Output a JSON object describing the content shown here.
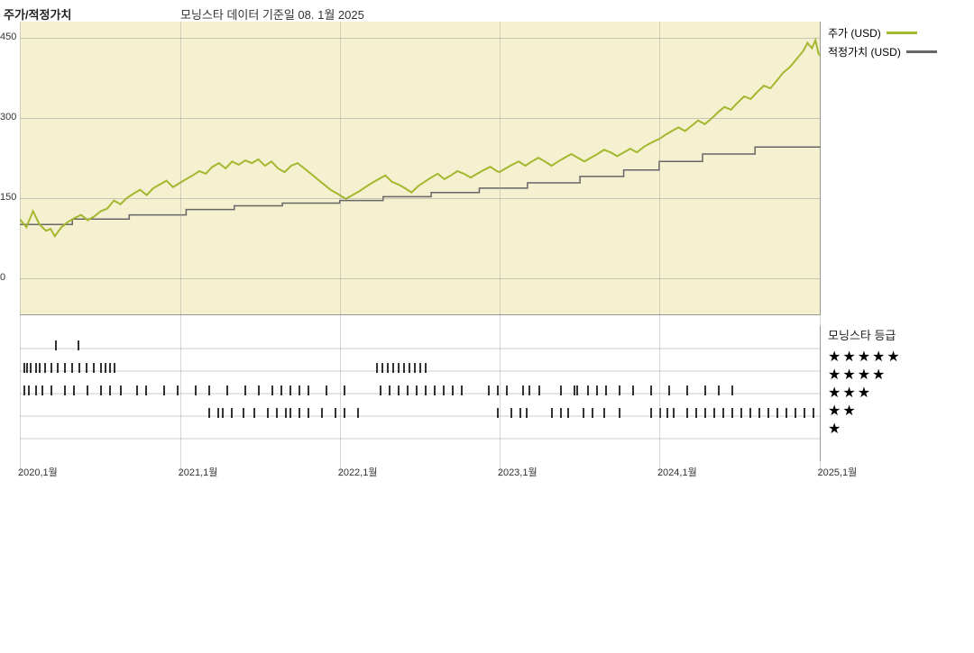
{
  "header": {
    "title": "주가/적정가치",
    "subtitle": "모닝스타 데이터 기준일 08. 1월 2025"
  },
  "legend": {
    "price": "주가 (USD)",
    "fair": "적정가치 (USD)",
    "price_color": "#a2b82e",
    "fair_color": "#666666"
  },
  "chart": {
    "type": "line",
    "background_color": "#f5f0cf",
    "grid_color": "#999999",
    "ylim": [
      -70,
      480
    ],
    "ytick_values": [
      0,
      150,
      300,
      450
    ],
    "ytick_labels": [
      "0",
      "150",
      "300",
      "450"
    ],
    "x_range_days": 1830,
    "x_ticks": [
      {
        "day": 0,
        "label": "2020,1월"
      },
      {
        "day": 366,
        "label": "2021,1월"
      },
      {
        "day": 731,
        "label": "2022,1월"
      },
      {
        "day": 1096,
        "label": "2023,1월"
      },
      {
        "day": 1461,
        "label": "2024,1월"
      },
      {
        "day": 1827,
        "label": "2025,1월"
      }
    ],
    "price_series": [
      [
        0,
        110
      ],
      [
        15,
        95
      ],
      [
        30,
        125
      ],
      [
        45,
        100
      ],
      [
        60,
        88
      ],
      [
        70,
        92
      ],
      [
        80,
        78
      ],
      [
        95,
        95
      ],
      [
        110,
        105
      ],
      [
        125,
        112
      ],
      [
        140,
        118
      ],
      [
        155,
        108
      ],
      [
        170,
        115
      ],
      [
        185,
        125
      ],
      [
        200,
        130
      ],
      [
        215,
        145
      ],
      [
        230,
        138
      ],
      [
        245,
        150
      ],
      [
        260,
        158
      ],
      [
        275,
        165
      ],
      [
        290,
        155
      ],
      [
        305,
        168
      ],
      [
        320,
        175
      ],
      [
        335,
        182
      ],
      [
        350,
        170
      ],
      [
        366,
        178
      ],
      [
        380,
        185
      ],
      [
        395,
        192
      ],
      [
        410,
        200
      ],
      [
        425,
        195
      ],
      [
        440,
        208
      ],
      [
        455,
        215
      ],
      [
        470,
        205
      ],
      [
        485,
        218
      ],
      [
        500,
        212
      ],
      [
        515,
        220
      ],
      [
        530,
        215
      ],
      [
        545,
        222
      ],
      [
        560,
        210
      ],
      [
        575,
        218
      ],
      [
        590,
        205
      ],
      [
        605,
        198
      ],
      [
        620,
        210
      ],
      [
        635,
        215
      ],
      [
        650,
        205
      ],
      [
        665,
        195
      ],
      [
        680,
        185
      ],
      [
        695,
        175
      ],
      [
        710,
        165
      ],
      [
        725,
        158
      ],
      [
        731,
        155
      ],
      [
        745,
        148
      ],
      [
        760,
        155
      ],
      [
        775,
        162
      ],
      [
        790,
        170
      ],
      [
        805,
        178
      ],
      [
        820,
        185
      ],
      [
        835,
        192
      ],
      [
        850,
        180
      ],
      [
        865,
        175
      ],
      [
        880,
        168
      ],
      [
        895,
        160
      ],
      [
        910,
        172
      ],
      [
        925,
        180
      ],
      [
        940,
        188
      ],
      [
        955,
        195
      ],
      [
        970,
        185
      ],
      [
        985,
        192
      ],
      [
        1000,
        200
      ],
      [
        1015,
        195
      ],
      [
        1030,
        188
      ],
      [
        1045,
        195
      ],
      [
        1060,
        202
      ],
      [
        1075,
        208
      ],
      [
        1090,
        200
      ],
      [
        1096,
        198
      ],
      [
        1110,
        205
      ],
      [
        1125,
        212
      ],
      [
        1140,
        218
      ],
      [
        1155,
        210
      ],
      [
        1170,
        218
      ],
      [
        1185,
        225
      ],
      [
        1200,
        218
      ],
      [
        1215,
        210
      ],
      [
        1230,
        218
      ],
      [
        1245,
        225
      ],
      [
        1260,
        232
      ],
      [
        1275,
        225
      ],
      [
        1290,
        218
      ],
      [
        1305,
        225
      ],
      [
        1320,
        232
      ],
      [
        1335,
        240
      ],
      [
        1350,
        235
      ],
      [
        1365,
        228
      ],
      [
        1380,
        235
      ],
      [
        1395,
        242
      ],
      [
        1410,
        235
      ],
      [
        1425,
        245
      ],
      [
        1440,
        252
      ],
      [
        1455,
        258
      ],
      [
        1461,
        260
      ],
      [
        1475,
        268
      ],
      [
        1490,
        275
      ],
      [
        1505,
        282
      ],
      [
        1520,
        275
      ],
      [
        1535,
        285
      ],
      [
        1550,
        295
      ],
      [
        1565,
        288
      ],
      [
        1580,
        298
      ],
      [
        1595,
        310
      ],
      [
        1610,
        320
      ],
      [
        1625,
        315
      ],
      [
        1640,
        328
      ],
      [
        1655,
        340
      ],
      [
        1670,
        335
      ],
      [
        1685,
        348
      ],
      [
        1700,
        360
      ],
      [
        1715,
        355
      ],
      [
        1730,
        370
      ],
      [
        1745,
        385
      ],
      [
        1760,
        395
      ],
      [
        1775,
        410
      ],
      [
        1790,
        425
      ],
      [
        1800,
        440
      ],
      [
        1810,
        430
      ],
      [
        1818,
        445
      ],
      [
        1825,
        420
      ],
      [
        1830,
        415
      ]
    ],
    "fair_series": [
      [
        0,
        100
      ],
      [
        120,
        100
      ],
      [
        120,
        110
      ],
      [
        250,
        110
      ],
      [
        250,
        118
      ],
      [
        380,
        118
      ],
      [
        380,
        128
      ],
      [
        490,
        128
      ],
      [
        490,
        135
      ],
      [
        600,
        135
      ],
      [
        600,
        140
      ],
      [
        731,
        140
      ],
      [
        731,
        145
      ],
      [
        830,
        145
      ],
      [
        830,
        152
      ],
      [
        940,
        152
      ],
      [
        940,
        160
      ],
      [
        1050,
        160
      ],
      [
        1050,
        168
      ],
      [
        1160,
        168
      ],
      [
        1160,
        178
      ],
      [
        1280,
        178
      ],
      [
        1280,
        190
      ],
      [
        1380,
        190
      ],
      [
        1380,
        202
      ],
      [
        1461,
        202
      ],
      [
        1461,
        218
      ],
      [
        1560,
        218
      ],
      [
        1560,
        232
      ],
      [
        1680,
        232
      ],
      [
        1680,
        245
      ],
      [
        1830,
        245
      ]
    ],
    "price_stroke": "#a2b82e",
    "price_width": 2,
    "fair_stroke": "#666666",
    "fair_width": 1.5
  },
  "rating": {
    "title": "모닝스타 등급",
    "rows": [
      5,
      4,
      3,
      2,
      1
    ],
    "tick_color": "#000000",
    "ticks": {
      "5": [
        40,
        65
      ],
      "4": [
        5,
        8,
        12,
        18,
        22,
        28,
        35,
        42,
        50,
        58,
        66,
        74,
        82,
        90,
        95,
        100,
        105,
        396,
        402,
        408,
        414,
        420,
        426,
        432,
        438,
        444,
        450
      ],
      "3": [
        5,
        10,
        18,
        25,
        35,
        50,
        60,
        75,
        90,
        100,
        112,
        130,
        140,
        160,
        175,
        195,
        210,
        230,
        250,
        265,
        280,
        290,
        300,
        310,
        320,
        340,
        360,
        400,
        410,
        420,
        430,
        440,
        450,
        460,
        470,
        480,
        490,
        520,
        530,
        540,
        558,
        565,
        576,
        600,
        615,
        618,
        630,
        640,
        650,
        665,
        680,
        700,
        720,
        740,
        760,
        775,
        790
      ],
      "2": [
        210,
        220,
        225,
        235,
        248,
        260,
        275,
        285,
        295,
        300,
        310,
        320,
        335,
        350,
        360,
        375,
        530,
        545,
        555,
        562,
        590,
        600,
        608,
        625,
        635,
        648,
        665,
        700,
        710,
        718,
        725,
        740,
        750,
        760,
        770,
        780,
        790,
        800,
        810,
        820,
        830,
        840,
        850,
        860,
        870,
        880
      ],
      "1": []
    }
  }
}
